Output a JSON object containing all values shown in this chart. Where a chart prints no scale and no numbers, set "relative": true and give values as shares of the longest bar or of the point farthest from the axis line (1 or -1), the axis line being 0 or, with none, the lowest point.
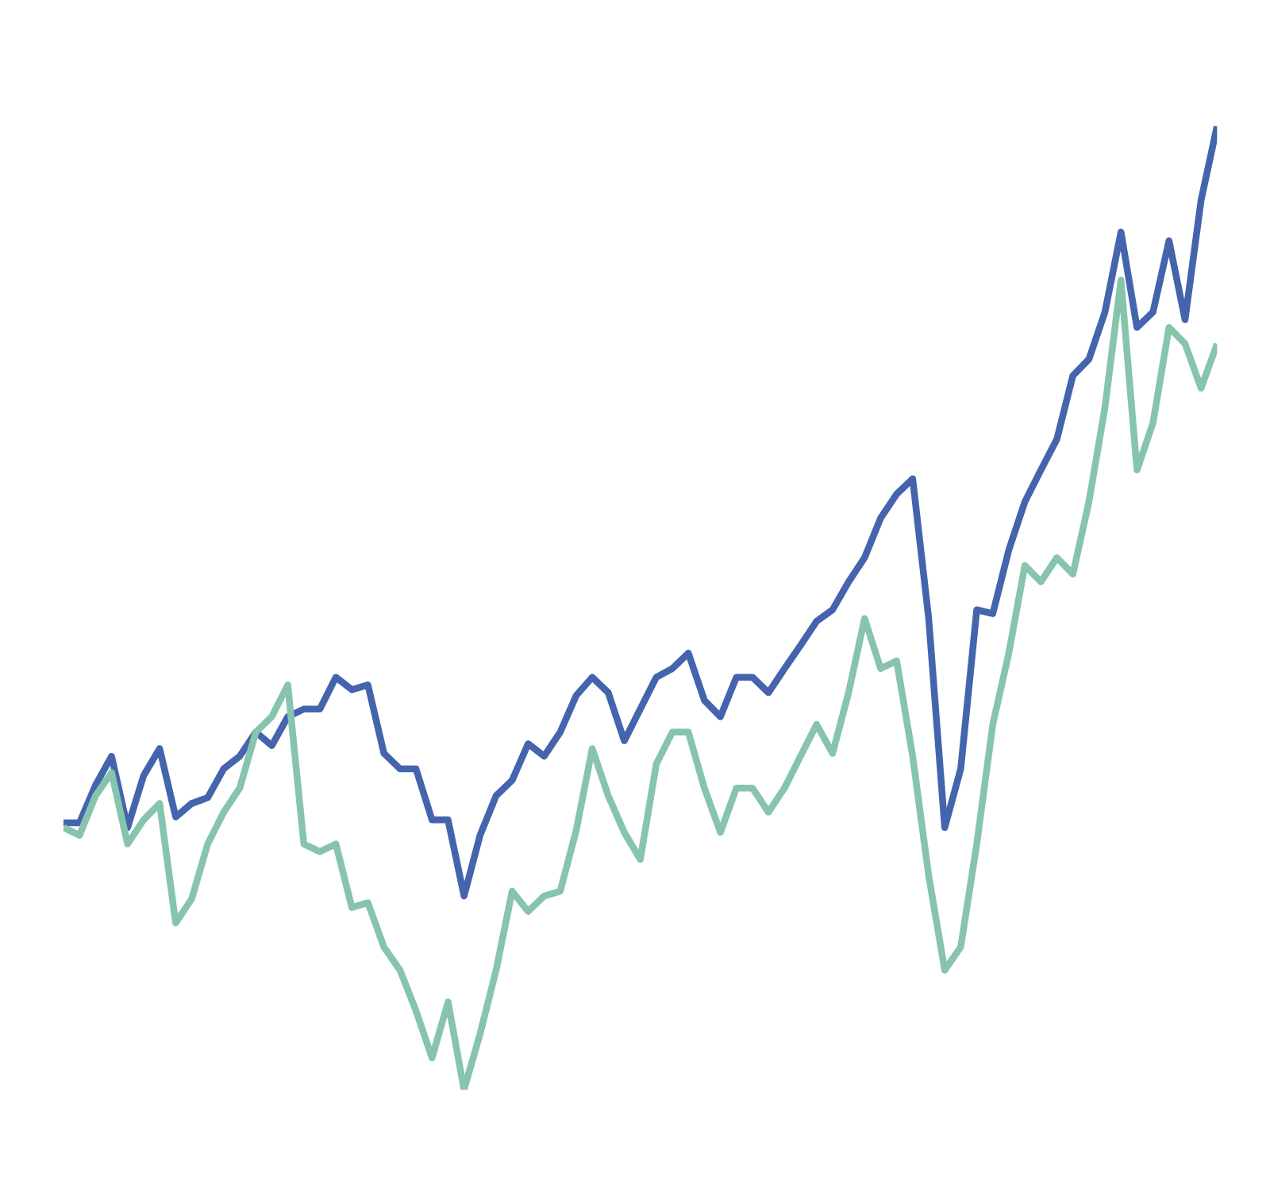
{
  "chart_data": {
    "type": "line",
    "relative": true,
    "categories": [
      null,
      null,
      null,
      null,
      null,
      null,
      null,
      null,
      null,
      null,
      null,
      null,
      null,
      null,
      null,
      null,
      null,
      null,
      null,
      null,
      null,
      null,
      null,
      null,
      null,
      null,
      null,
      null,
      null,
      null,
      null,
      null,
      null,
      null,
      null,
      null,
      null,
      null,
      null,
      null,
      null,
      null,
      null,
      null,
      null,
      null,
      null,
      null,
      null,
      null,
      null,
      null,
      null,
      null,
      null,
      null,
      null,
      null,
      null,
      null,
      null,
      null,
      null,
      null,
      null,
      null,
      null,
      null,
      null,
      null,
      null,
      null,
      null
    ],
    "series": [
      {
        "color": "#4464ad",
        "values": [
          0.277,
          0.277,
          0.316,
          0.346,
          0.272,
          0.326,
          0.354,
          0.283,
          0.297,
          0.303,
          0.333,
          0.346,
          0.371,
          0.357,
          0.387,
          0.395,
          0.395,
          0.428,
          0.415,
          0.42,
          0.349,
          0.333,
          0.333,
          0.28,
          0.28,
          0.201,
          0.264,
          0.305,
          0.321,
          0.359,
          0.346,
          0.371,
          0.409,
          0.428,
          0.412,
          0.362,
          0.395,
          0.428,
          0.437,
          0.453,
          0.404,
          0.387,
          0.428,
          0.428,
          0.412,
          0.437,
          0.461,
          0.486,
          0.498,
          0.527,
          0.552,
          0.593,
          0.618,
          0.634,
          0.489,
          0.272,
          0.333,
          0.498,
          0.494,
          0.56,
          0.61,
          0.643,
          0.675,
          0.741,
          0.758,
          0.807,
          0.89,
          0.791,
          0.807,
          0.881,
          0.799,
          0.923,
          1
        ]
      },
      {
        "color": "#86c5ab",
        "values": [
          0.272,
          0.264,
          0.305,
          0.329,
          0.255,
          0.28,
          0.297,
          0.173,
          0.198,
          0.255,
          0.288,
          0.313,
          0.371,
          0.387,
          0.42,
          0.255,
          0.247,
          0.255,
          0.189,
          0.194,
          0.148,
          0.124,
          0.082,
          0.033,
          0.091,
          0,
          0.058,
          0.124,
          0.206,
          0.185,
          0.201,
          0.206,
          0.269,
          0.354,
          0.305,
          0.267,
          0.239,
          0.338,
          0.371,
          0.371,
          0.313,
          0.267,
          0.313,
          0.313,
          0.288,
          0.313,
          0.346,
          0.379,
          0.349,
          0.412,
          0.489,
          0.437,
          0.445,
          0.346,
          0.222,
          0.124,
          0.148,
          0.255,
          0.379,
          0.453,
          0.544,
          0.527,
          0.552,
          0.535,
          0.61,
          0.708,
          0.84,
          0.643,
          0.692,
          0.791,
          0.774,
          0.728,
          0.774
        ]
      }
    ]
  }
}
